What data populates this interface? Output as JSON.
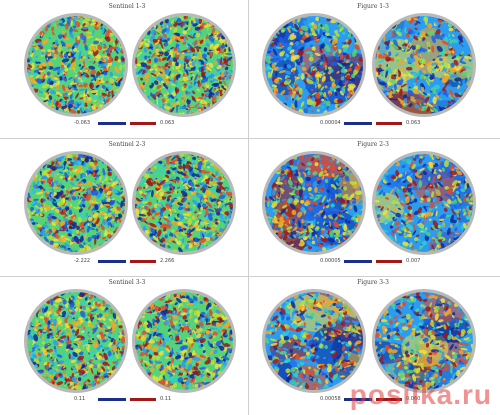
{
  "panels": [
    {
      "title": "Sentinel 1-3",
      "min": "-0.063",
      "max": "0.063",
      "colors": {
        "low": "#1b2f8a",
        "high": "#a01818"
      },
      "style": "noise"
    },
    {
      "title": "Figure 1-3",
      "min": "0.00004",
      "max": "0.063",
      "colors": {
        "low": "#1b2f8a",
        "high": "#a01818"
      },
      "style": "blotchy"
    },
    {
      "title": "Sentinel 2-3",
      "min": "-2.222",
      "max": "2.266",
      "colors": {
        "low": "#1b2f8a",
        "high": "#a01818"
      },
      "style": "noise"
    },
    {
      "title": "Figure 2-3",
      "min": "0.00005",
      "max": "0.007",
      "colors": {
        "low": "#1b2f8a",
        "high": "#a01818"
      },
      "style": "blotchy"
    },
    {
      "title": "Sentinel 3-3",
      "min": "0.11",
      "max": "0.11",
      "colors": {
        "low": "#1b2f8a",
        "high": "#a01818"
      },
      "style": "noise"
    },
    {
      "title": "Figure 3-3",
      "min": "0.00058",
      "max": "0.060",
      "colors": {
        "low": "#1b2f8a",
        "high": "#a01818"
      },
      "style": "blotchy"
    }
  ],
  "watermark": "posilka.ru",
  "palette": [
    "#0b2a9b",
    "#1d5fe0",
    "#2b9cf0",
    "#2ed0d0",
    "#55d37a",
    "#b7df3b",
    "#f2e138",
    "#f5a623",
    "#e24b2a",
    "#a11616"
  ]
}
